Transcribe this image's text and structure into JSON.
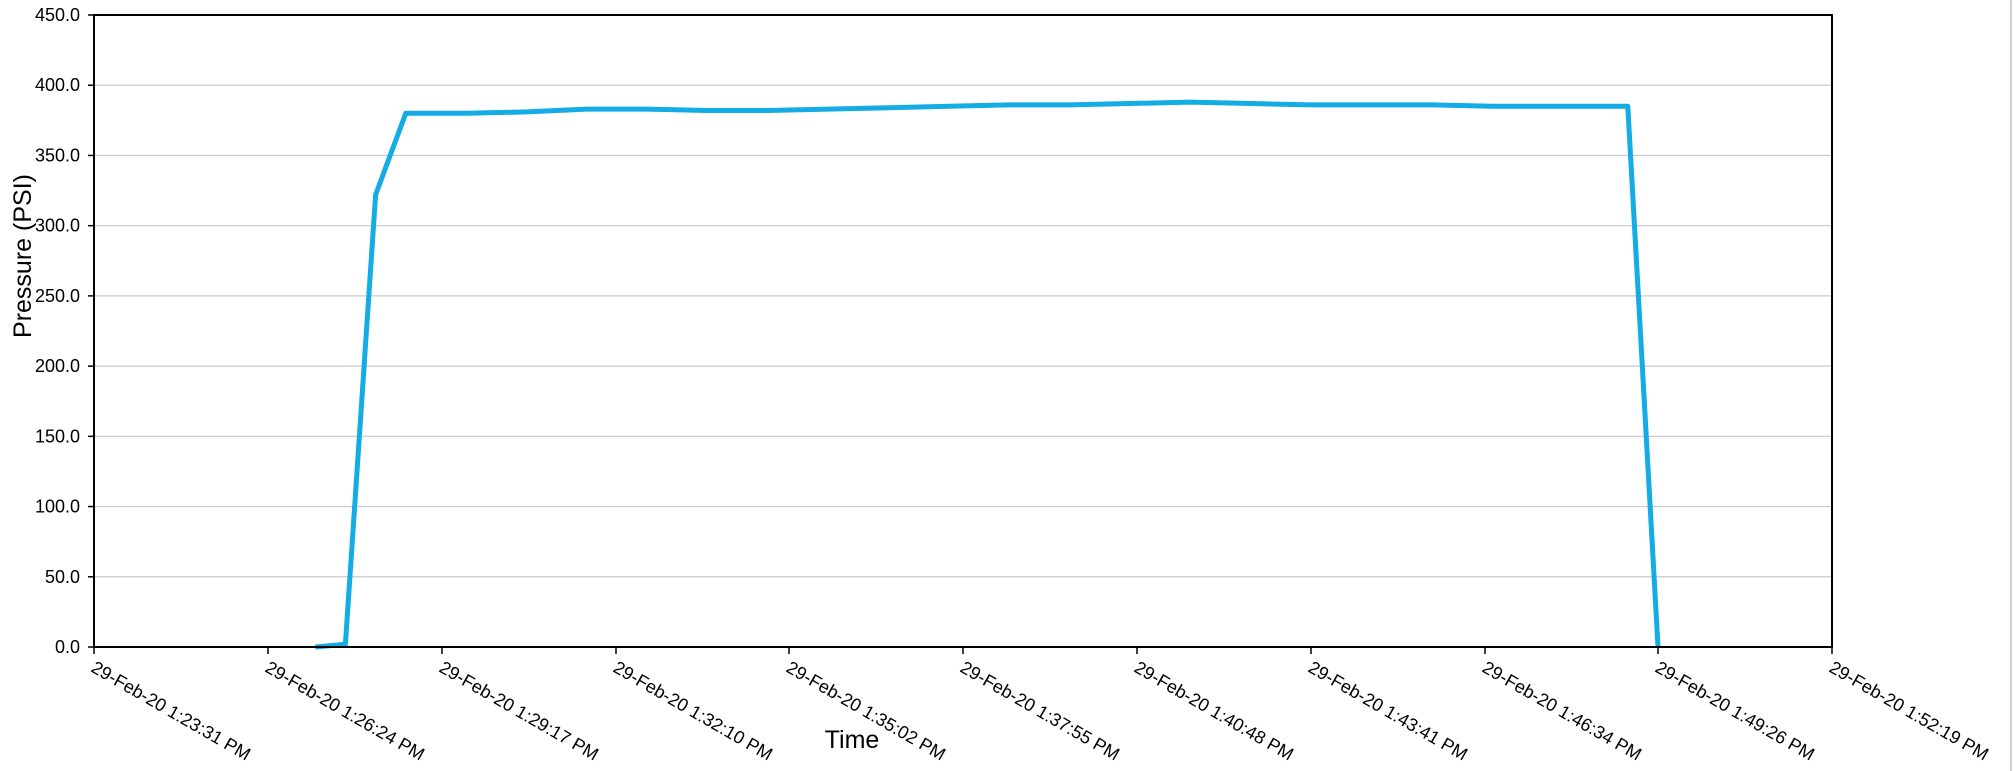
{
  "chart_data": {
    "type": "line",
    "title": "",
    "xlabel": "Time",
    "ylabel": "Pressure (PSI)",
    "ylim": [
      0,
      450
    ],
    "yticks": [
      0,
      50,
      100,
      150,
      200,
      250,
      300,
      350,
      400,
      450
    ],
    "ytick_labels": [
      "0.0",
      "50.0",
      "100.0",
      "150.0",
      "200.0",
      "250.0",
      "300.0",
      "350.0",
      "400.0",
      "450.0"
    ],
    "xlim": [
      "2020-02-29 13:23:31",
      "2020-02-29 13:52:19"
    ],
    "xticks": [
      "2020-02-29 13:23:31",
      "2020-02-29 13:26:24",
      "2020-02-29 13:29:17",
      "2020-02-29 13:32:10",
      "2020-02-29 13:35:02",
      "2020-02-29 13:37:55",
      "2020-02-29 13:40:48",
      "2020-02-29 13:43:41",
      "2020-02-29 13:46:34",
      "2020-02-29 13:49:26",
      "2020-02-29 13:52:19"
    ],
    "xtick_labels": [
      "29-Feb-20 1:23:31 PM",
      "29-Feb-20 1:26:24 PM",
      "29-Feb-20 1:29:17 PM",
      "29-Feb-20 1:32:10 PM",
      "29-Feb-20 1:35:02 PM",
      "29-Feb-20 1:37:55 PM",
      "29-Feb-20 1:40:48 PM",
      "29-Feb-20 1:43:41 PM",
      "29-Feb-20 1:46:34 PM",
      "29-Feb-20 1:49:26 PM",
      "29-Feb-20 1:52:19 PM"
    ],
    "grid": "horizontal",
    "legend": "none",
    "series": [
      {
        "color": "#13ace4",
        "points": [
          {
            "x": "2020-02-29 13:27:11",
            "y": 0
          },
          {
            "x": "2020-02-29 13:27:41",
            "y": 2
          },
          {
            "x": "2020-02-29 13:28:11",
            "y": 322
          },
          {
            "x": "2020-02-29 13:28:41",
            "y": 380
          },
          {
            "x": "2020-02-29 13:29:41",
            "y": 380
          },
          {
            "x": "2020-02-29 13:30:41",
            "y": 381
          },
          {
            "x": "2020-02-29 13:31:41",
            "y": 383
          },
          {
            "x": "2020-02-29 13:32:41",
            "y": 383
          },
          {
            "x": "2020-02-29 13:33:41",
            "y": 382
          },
          {
            "x": "2020-02-29 13:34:41",
            "y": 382
          },
          {
            "x": "2020-02-29 13:35:41",
            "y": 383
          },
          {
            "x": "2020-02-29 13:36:41",
            "y": 384
          },
          {
            "x": "2020-02-29 13:37:41",
            "y": 385
          },
          {
            "x": "2020-02-29 13:38:41",
            "y": 386
          },
          {
            "x": "2020-02-29 13:39:41",
            "y": 386
          },
          {
            "x": "2020-02-29 13:40:41",
            "y": 387
          },
          {
            "x": "2020-02-29 13:41:41",
            "y": 388
          },
          {
            "x": "2020-02-29 13:42:41",
            "y": 387
          },
          {
            "x": "2020-02-29 13:43:41",
            "y": 386
          },
          {
            "x": "2020-02-29 13:44:41",
            "y": 386
          },
          {
            "x": "2020-02-29 13:45:41",
            "y": 386
          },
          {
            "x": "2020-02-29 13:46:41",
            "y": 385
          },
          {
            "x": "2020-02-29 13:47:41",
            "y": 385
          },
          {
            "x": "2020-02-29 13:48:41",
            "y": 385
          },
          {
            "x": "2020-02-29 13:48:56",
            "y": 385
          },
          {
            "x": "2020-02-29 13:49:26",
            "y": 0
          }
        ]
      }
    ]
  },
  "colors": {
    "line": "#13ace4",
    "grid": "#c8c8c8",
    "axis": "#000000",
    "background": "#ffffff"
  }
}
